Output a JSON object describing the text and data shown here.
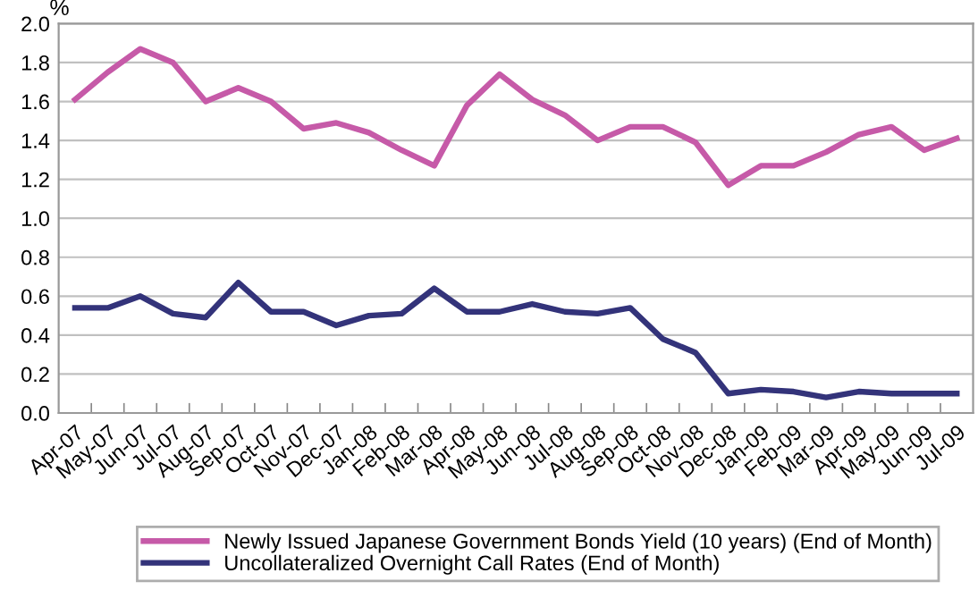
{
  "chart_data": {
    "type": "line",
    "ylabel": "%",
    "categories": [
      "Apr-07",
      "May-07",
      "Jun-07",
      "Jul-07",
      "Aug-07",
      "Sep-07",
      "Oct-07",
      "Nov-07",
      "Dec-07",
      "Jan-08",
      "Feb-08",
      "Mar-08",
      "Apr-08",
      "May-08",
      "Jun-08",
      "Jul-08",
      "Aug-08",
      "Sep-08",
      "Oct-08",
      "Nov-08",
      "Dec-08",
      "Jan-09",
      "Feb-09",
      "Mar-09",
      "Apr-09",
      "May-09",
      "Jun-09",
      "Jul-09"
    ],
    "series": [
      {
        "name": "Newly Issued Japanese Government Bonds Yield (10 years) (End of Month)",
        "color": "#c65aa8",
        "values": [
          1.61,
          1.75,
          1.87,
          1.8,
          1.6,
          1.67,
          1.6,
          1.46,
          1.49,
          1.44,
          1.35,
          1.27,
          1.58,
          1.74,
          1.61,
          1.53,
          1.4,
          1.47,
          1.47,
          1.39,
          1.17,
          1.27,
          1.27,
          1.34,
          1.43,
          1.47,
          1.35,
          1.41
        ]
      },
      {
        "name": "Uncollateralized Overnight Call Rates (End of Month)",
        "color": "#33337a",
        "values": [
          0.54,
          0.54,
          0.6,
          0.51,
          0.49,
          0.67,
          0.52,
          0.52,
          0.45,
          0.5,
          0.51,
          0.64,
          0.52,
          0.52,
          0.56,
          0.52,
          0.51,
          0.54,
          0.38,
          0.31,
          0.1,
          0.12,
          0.11,
          0.08,
          0.11,
          0.1,
          0.1,
          0.1
        ]
      }
    ],
    "ylim": [
      0,
      2.0
    ],
    "yticks": [
      {
        "value": 0,
        "label": "0.0"
      },
      {
        "value": 0.2,
        "label": "0.2"
      },
      {
        "value": 0.4,
        "label": "0.4"
      },
      {
        "value": 0.6,
        "label": "0.6"
      },
      {
        "value": 0.8,
        "label": "0.8"
      },
      {
        "value": 1.0,
        "label": "1.0"
      },
      {
        "value": 1.2,
        "label": "1.2"
      },
      {
        "value": 1.4,
        "label": "1.4"
      },
      {
        "value": 1.6,
        "label": "1.6"
      },
      {
        "value": 1.8,
        "label": "1.8"
      },
      {
        "value": 2.0,
        "label": "2.0"
      }
    ],
    "grid": "y",
    "legend": "bottom",
    "marker": "none",
    "line_style": "solid"
  }
}
